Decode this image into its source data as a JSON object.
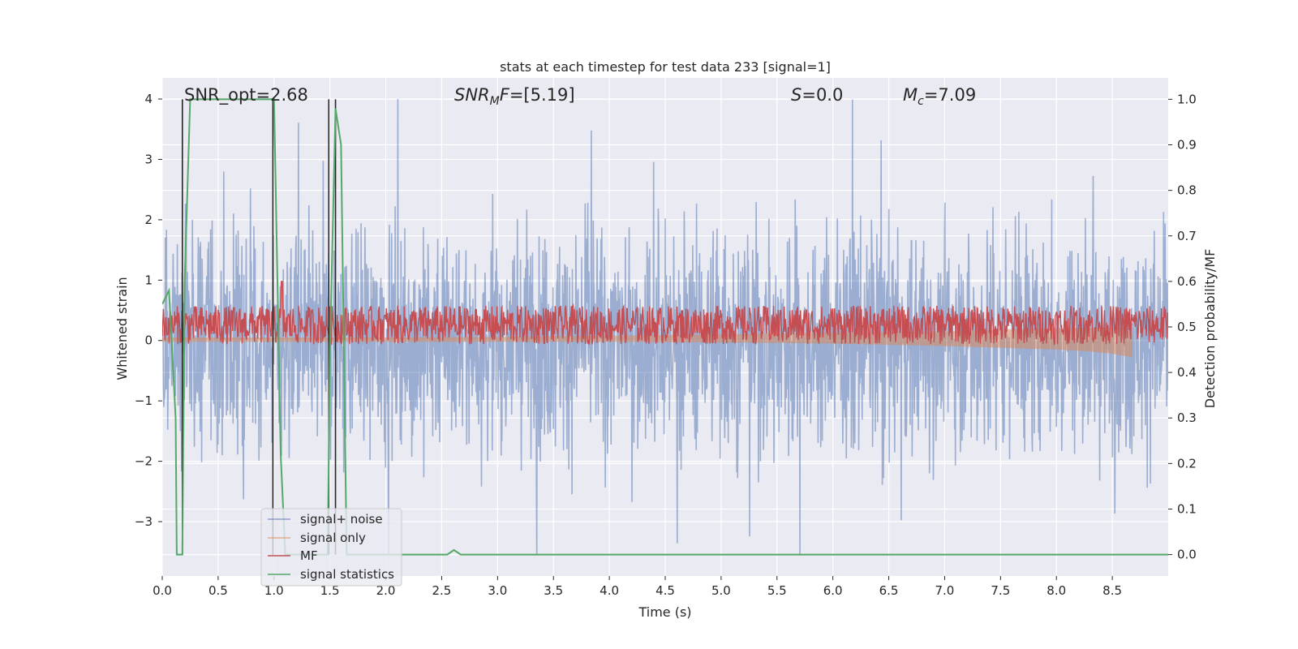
{
  "chart_data": {
    "type": "line",
    "title": "stats at each timestep for test data 233 [signal=1]",
    "xlabel": "Time (s)",
    "ylabel": "Whitened strain",
    "ylabel_right": "Detection probability/MF",
    "xlim": [
      0.0,
      9.0
    ],
    "ylim": [
      -3.9,
      4.35
    ],
    "ylim_right": [
      -0.047,
      1.047
    ],
    "xticks": [
      0.0,
      0.5,
      1.0,
      1.5,
      2.0,
      2.5,
      3.0,
      3.5,
      4.0,
      4.5,
      5.0,
      5.5,
      6.0,
      6.5,
      7.0,
      7.5,
      8.0,
      8.5
    ],
    "xtick_labels": [
      "0.0",
      "0.5",
      "1.0",
      "1.5",
      "2.0",
      "2.5",
      "3.0",
      "3.5",
      "4.0",
      "4.5",
      "5.0",
      "5.5",
      "6.0",
      "6.5",
      "7.0",
      "7.5",
      "8.0",
      "8.5"
    ],
    "yticks": [
      -3,
      -2,
      -1,
      0,
      1,
      2,
      3,
      4
    ],
    "ytick_labels": [
      "−3",
      "−2",
      "−1",
      "0",
      "1",
      "2",
      "3",
      "4"
    ],
    "yticks_right": [
      0.0,
      0.1,
      0.2,
      0.3,
      0.4,
      0.5,
      0.6,
      0.7,
      0.8,
      0.9,
      1.0
    ],
    "ytick_labels_right": [
      "0.0",
      "0.1",
      "0.2",
      "0.3",
      "0.4",
      "0.5",
      "0.6",
      "0.7",
      "0.8",
      "0.9",
      "1.0"
    ],
    "grid": true,
    "legend_position": "lower-left",
    "annotations": [
      {
        "text": "SNR_opt=2.68",
        "x": 0.2,
        "y": 4.1
      },
      {
        "text": "SNR_MF=[5.19]",
        "x": 2.6,
        "y": 4.1
      },
      {
        "text": "S=0.0",
        "x": 5.6,
        "y": 4.1
      },
      {
        "text": "M_c=7.09",
        "x": 6.6,
        "y": 4.1
      }
    ],
    "series": [
      {
        "name": "signal+ noise",
        "color": "#4c72b0",
        "opacity": 0.5,
        "axis": "left",
        "envelope": {
          "x": [
            0.0,
            9.0
          ],
          "typical_range": [
            -1.6,
            1.6
          ],
          "peak_max": 4.0,
          "peak_min": -3.55,
          "description_x_of_peaks": [
            2.35,
            6.45,
            8.55,
            6.08,
            7.75
          ]
        }
      },
      {
        "name": "signal only",
        "color": "#dd8452",
        "opacity": 0.5,
        "axis": "left",
        "x": [
          0.0,
          1.0,
          2.0,
          3.0,
          4.0,
          5.0,
          5.5,
          6.0,
          6.5,
          7.0,
          7.5,
          8.0,
          8.3,
          8.5,
          8.6,
          8.68
        ],
        "upper": [
          0.05,
          0.05,
          0.05,
          0.06,
          0.08,
          0.1,
          0.12,
          0.13,
          0.14,
          0.15,
          0.18,
          0.2,
          0.21,
          0.22,
          0.2,
          0.1
        ],
        "lower": [
          -0.02,
          -0.02,
          -0.02,
          -0.02,
          -0.02,
          -0.03,
          -0.04,
          -0.05,
          -0.07,
          -0.09,
          -0.12,
          -0.15,
          -0.18,
          -0.22,
          -0.25,
          -0.28
        ]
      },
      {
        "name": "MF",
        "color": "#c44e52",
        "axis": "right",
        "center": 0.5,
        "typical_range": [
          0.475,
          0.56
        ],
        "peak": {
          "x": 1.07,
          "y": 0.6
        }
      },
      {
        "name": "signal statistics",
        "color": "#55a868",
        "axis": "right",
        "x": [
          0.0,
          0.06,
          0.12,
          0.13,
          0.18,
          0.2,
          0.25,
          0.3,
          0.5,
          0.7,
          0.9,
          1.0,
          1.06,
          1.1,
          1.3,
          1.48,
          1.5,
          1.55,
          1.6,
          1.65,
          1.7,
          2.0,
          2.55,
          2.61,
          2.67,
          2.7,
          3.0,
          5.0,
          7.0,
          9.0
        ],
        "y": [
          0.55,
          0.58,
          0.3,
          0.0,
          0.0,
          0.6,
          1.0,
          1.0,
          1.0,
          1.0,
          1.0,
          1.0,
          0.22,
          0.0,
          0.0,
          0.0,
          0.45,
          0.98,
          0.9,
          0.0,
          0.0,
          0.0,
          0.0,
          0.01,
          0.0,
          0.0,
          0.0,
          0.0,
          0.0,
          0.0
        ]
      },
      {
        "name": "",
        "color": "#262626",
        "axis": "right",
        "type": "vertical-markers",
        "x": [
          0.18,
          0.99,
          1.49,
          1.55
        ],
        "y_range": [
          0.0,
          1.0
        ]
      }
    ]
  }
}
